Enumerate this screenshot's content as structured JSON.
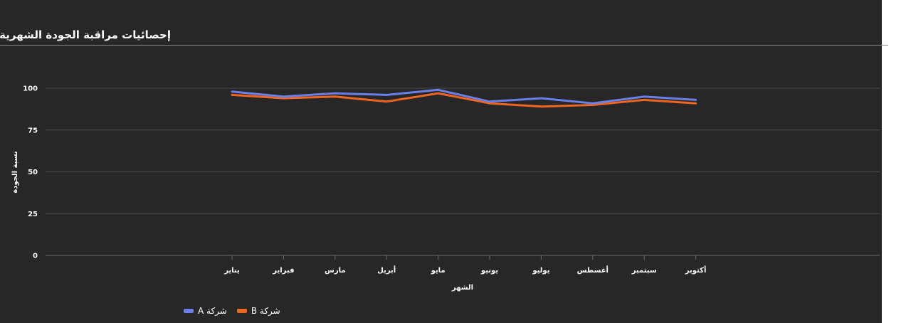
{
  "page": {
    "background": "#272727",
    "title": "إحصائيات مراقبة الجودة الشهرية"
  },
  "chart_data": {
    "type": "line",
    "title": "إحصائيات مراقبة الجودة الشهرية",
    "xlabel": "الشهر",
    "ylabel": "نسبة الجودة",
    "categories": [
      "يناير",
      "فبراير",
      "مارس",
      "أبريل",
      "مايو",
      "يونيو",
      "يوليو",
      "أغسطس",
      "سبتمبر",
      "أكتوبر"
    ],
    "ylim": [
      0,
      100
    ],
    "yticks": [
      0,
      25,
      50,
      75,
      100
    ],
    "grid": true,
    "legend_position": "bottom-left",
    "series": [
      {
        "name": "شركة A",
        "color": "#6b7fe8",
        "values": [
          98,
          95,
          97,
          96,
          99,
          92,
          94,
          91,
          95,
          93
        ]
      },
      {
        "name": "شركة B",
        "color": "#f0651f",
        "values": [
          96,
          94,
          95,
          92,
          97,
          91,
          89,
          90,
          93,
          91
        ]
      }
    ]
  }
}
